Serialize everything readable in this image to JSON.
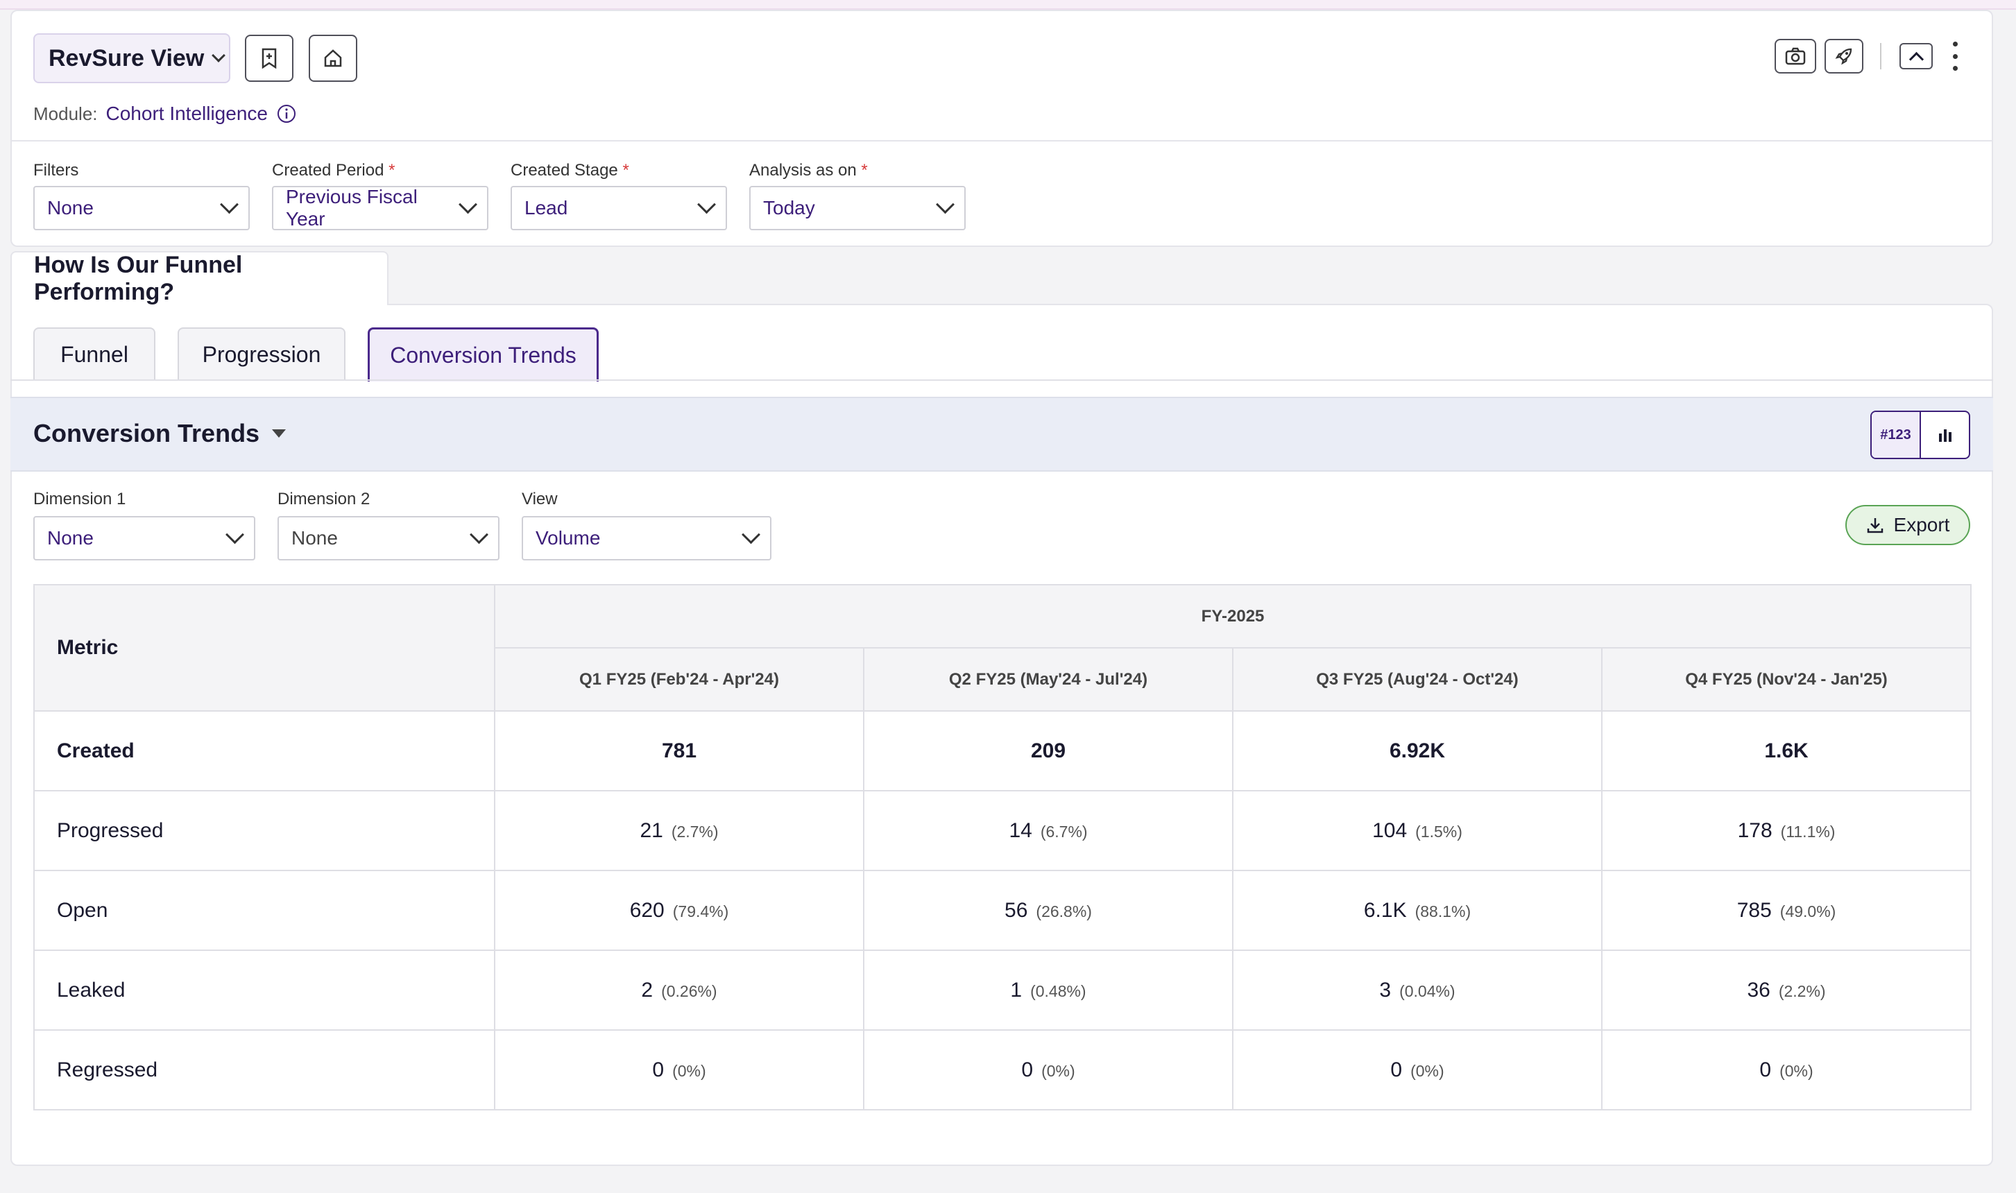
{
  "header": {
    "view_label": "RevSure View",
    "module_label": "Module:",
    "module_value": "Cohort Intelligence"
  },
  "filters": {
    "filters_label": "Filters",
    "filters_value": "None",
    "created_period_label": "Created Period",
    "created_period_value": "Previous Fiscal Year",
    "created_stage_label": "Created Stage",
    "created_stage_value": "Lead",
    "analysis_label": "Analysis as on",
    "analysis_value": "Today",
    "required_mark": "*"
  },
  "section": {
    "title": "How Is Our Funnel Performing?"
  },
  "tabs": [
    {
      "label": "Funnel"
    },
    {
      "label": "Progression"
    },
    {
      "label": "Conversion Trends"
    }
  ],
  "conversion": {
    "title": "Conversion Trends",
    "toggle_number": "#123",
    "export_label": "Export",
    "dimension1_label": "Dimension 1",
    "dimension1_value": "None",
    "dimension2_label": "Dimension 2",
    "dimension2_value": "None",
    "view_label": "View",
    "view_value": "Volume"
  },
  "table": {
    "metric_header": "Metric",
    "group_header": "FY-2025",
    "columns": [
      "Q1 FY25 (Feb'24 - Apr'24)",
      "Q2 FY25 (May'24 - Jul'24)",
      "Q3 FY25 (Aug'24 - Oct'24)",
      "Q4 FY25 (Nov'24 - Jan'25)"
    ],
    "rows": [
      {
        "label": "Created",
        "cells": [
          {
            "v": "781",
            "p": ""
          },
          {
            "v": "209",
            "p": ""
          },
          {
            "v": "6.92K",
            "p": ""
          },
          {
            "v": "1.6K",
            "p": ""
          }
        ]
      },
      {
        "label": "Progressed",
        "cells": [
          {
            "v": "21",
            "p": "(2.7%)"
          },
          {
            "v": "14",
            "p": "(6.7%)"
          },
          {
            "v": "104",
            "p": "(1.5%)"
          },
          {
            "v": "178",
            "p": "(11.1%)"
          }
        ]
      },
      {
        "label": "Open",
        "cells": [
          {
            "v": "620",
            "p": "(79.4%)"
          },
          {
            "v": "56",
            "p": "(26.8%)"
          },
          {
            "v": "6.1K",
            "p": "(88.1%)"
          },
          {
            "v": "785",
            "p": "(49.0%)"
          }
        ]
      },
      {
        "label": "Leaked",
        "cells": [
          {
            "v": "2",
            "p": "(0.26%)"
          },
          {
            "v": "1",
            "p": "(0.48%)"
          },
          {
            "v": "3",
            "p": "(0.04%)"
          },
          {
            "v": "36",
            "p": "(2.2%)"
          }
        ]
      },
      {
        "label": "Regressed",
        "cells": [
          {
            "v": "0",
            "p": "(0%)"
          },
          {
            "v": "0",
            "p": "(0%)"
          },
          {
            "v": "0",
            "p": "(0%)"
          },
          {
            "v": "0",
            "p": "(0%)"
          }
        ]
      }
    ]
  }
}
